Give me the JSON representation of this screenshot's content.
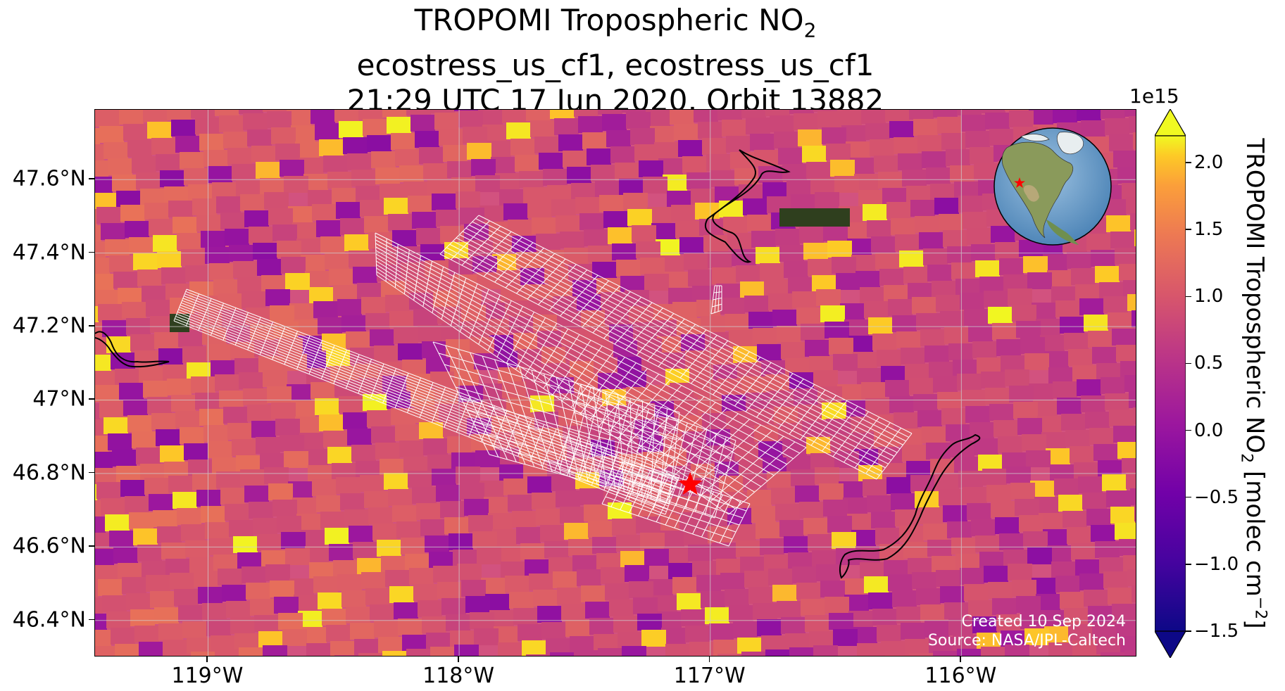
{
  "title": {
    "line1_main": "TROPOMI Tropospheric NO",
    "line1_sub": "2",
    "line2": "ecostress_us_cf1, ecostress_us_cf1",
    "line3": "21:29 UTC 17 Jun 2020, Orbit 13882"
  },
  "map": {
    "lon_range": [
      -119.45,
      -115.3
    ],
    "lat_range": [
      46.3,
      47.79
    ],
    "lon_ticks": [
      {
        "value": -119,
        "label": "119°W"
      },
      {
        "value": -118,
        "label": "118°W"
      },
      {
        "value": -117,
        "label": "117°W"
      },
      {
        "value": -116,
        "label": "116°W"
      }
    ],
    "lat_ticks": [
      {
        "value": 47.6,
        "label": "47.6°N"
      },
      {
        "value": 47.4,
        "label": "47.4°N"
      },
      {
        "value": 47.2,
        "label": "47.2°N"
      },
      {
        "value": 47.0,
        "label": "47°N"
      },
      {
        "value": 46.8,
        "label": "46.8°N"
      },
      {
        "value": 46.6,
        "label": "46.6°N"
      },
      {
        "value": 46.4,
        "label": "46.4°N"
      }
    ],
    "target_marker": {
      "lon": -117.08,
      "lat": 46.77,
      "color": "#ff0000",
      "symbol": "star"
    },
    "gridlines": true,
    "swath_outline_color": "#ffffff"
  },
  "credit": {
    "line1": "Created 10 Sep 2024",
    "line2": "Source: NASA/JPL-Caltech"
  },
  "colorbar": {
    "exponent": "1e15",
    "label_main": "TROPOMI Tropospheric NO",
    "label_sub": "2",
    "label_units": " [molec cm",
    "label_power": "−2",
    "label_close": "]",
    "range": [
      -1.5,
      2.2
    ],
    "colormap": "plasma",
    "extend": "both",
    "ticks": [
      {
        "value": 2.0,
        "label": "2.0"
      },
      {
        "value": 1.5,
        "label": "1.5"
      },
      {
        "value": 1.0,
        "label": "1.0"
      },
      {
        "value": 0.5,
        "label": "0.5"
      },
      {
        "value": 0.0,
        "label": "0.0"
      },
      {
        "value": -0.5,
        "label": "−0.5"
      },
      {
        "value": -1.0,
        "label": "−1.0"
      },
      {
        "value": -1.5,
        "label": "−1.5"
      }
    ]
  },
  "inset": {
    "type": "globe",
    "marker_color": "#ff0000",
    "marker_symbol": "star"
  },
  "colors": {
    "plasma_low": "#0d0887",
    "plasma_mid": "#cc4778",
    "plasma_high": "#f0f921"
  }
}
